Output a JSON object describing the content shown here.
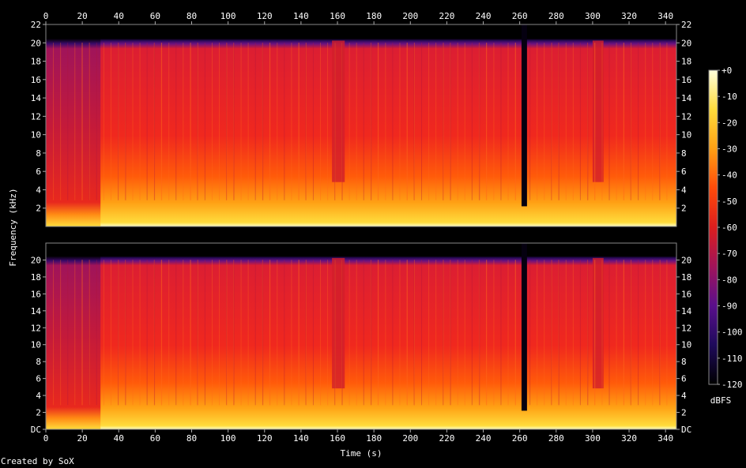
{
  "chart_data": {
    "type": "heatmap",
    "title": "",
    "xlabel": "Time (s)",
    "ylabel": "Frequency (kHz)",
    "x_ticks": [
      "0",
      "20",
      "40",
      "60",
      "80",
      "100",
      "120",
      "140",
      "160",
      "180",
      "200",
      "220",
      "240",
      "260",
      "280",
      "300",
      "320",
      "340"
    ],
    "y_ticks_upper": [
      "2",
      "4",
      "6",
      "8",
      "10",
      "12",
      "14",
      "16",
      "18",
      "20",
      "22"
    ],
    "y_ticks_lower": [
      "DC",
      "2",
      "4",
      "6",
      "8",
      "10",
      "12",
      "14",
      "16",
      "18",
      "20"
    ],
    "xlim": [
      0,
      346
    ],
    "ylim": [
      0,
      22
    ],
    "channels": 2,
    "colorbar": {
      "label": "dBFS",
      "range": [
        -120,
        0
      ],
      "ticks": [
        "+0",
        "-10",
        "-20",
        "-30",
        "-40",
        "-50",
        "-60",
        "-70",
        "-80",
        "-90",
        "-100",
        "-110",
        "-120"
      ],
      "colors": [
        "#000000",
        "#1e0a5a",
        "#5a0f8c",
        "#a0145a",
        "#dc1e1e",
        "#ff4b0a",
        "#ffa014",
        "#ffdc3c",
        "#ffffdc"
      ]
    },
    "energy_cutoff_khz": 20,
    "quiet_intro_end_s": 30,
    "silent_gap_s": [
      261,
      264
    ],
    "low_energy_dips_s": [
      [
        157,
        164
      ],
      [
        300,
        306
      ]
    ]
  },
  "footer": {
    "credit": "Created by SoX"
  }
}
